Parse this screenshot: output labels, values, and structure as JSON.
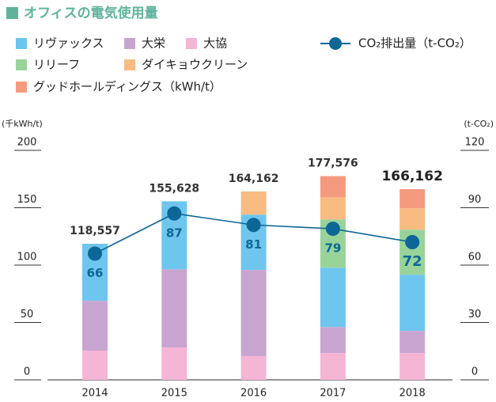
{
  "chart_data": {
    "type": "bar",
    "title": "オフィスの電気使用量",
    "y_label": "(千kWh/t)",
    "y2_label": "(t-CO₂)",
    "categories": [
      "2014",
      "2015",
      "2016",
      "2017",
      "2018"
    ],
    "series": [
      {
        "name": "リヴァックス",
        "color": "#6ec6ee",
        "values": [
          49.7,
          59.2,
          48.2,
          51.7,
          48.9
        ]
      },
      {
        "name": "大栄",
        "color": "#c8a5d0",
        "values": [
          43.4,
          68.2,
          75.1,
          22.7,
          19.3
        ]
      },
      {
        "name": "大協",
        "color": "#f5b5d4",
        "values": [
          25.5,
          28.2,
          20.7,
          23.4,
          23.4
        ]
      },
      {
        "name": "リリーフ",
        "color": "#98d39a",
        "values": [
          null,
          null,
          null,
          42,
          39.3
        ]
      },
      {
        "name": "ダイキョウクリーン",
        "color": "#f8bb82",
        "values": [
          null,
          null,
          20.2,
          19.3,
          18.6
        ]
      },
      {
        "name": "グッドホールディングス（kWh/t）",
        "color": "#f49a7e",
        "values": [
          null,
          null,
          null,
          18.5,
          16.7
        ]
      },
      {
        "name": "CO₂排出量（t-CO₂）",
        "color": "#0d6796",
        "type": "line",
        "axis": "y2",
        "values": [
          66,
          87,
          81,
          79,
          72
        ]
      }
    ],
    "totals": [
      118.557,
      155.628,
      164.162,
      177.576,
      166.162
    ],
    "total_labels": [
      "118,557",
      "155,628",
      "164,162",
      "177,576",
      "166,162"
    ],
    "ylim": [
      0,
      200
    ],
    "yticks": [
      0,
      50,
      100,
      150,
      200
    ],
    "y2lim": [
      0,
      120
    ],
    "y2ticks": [
      0,
      30,
      60,
      90,
      120
    ]
  }
}
